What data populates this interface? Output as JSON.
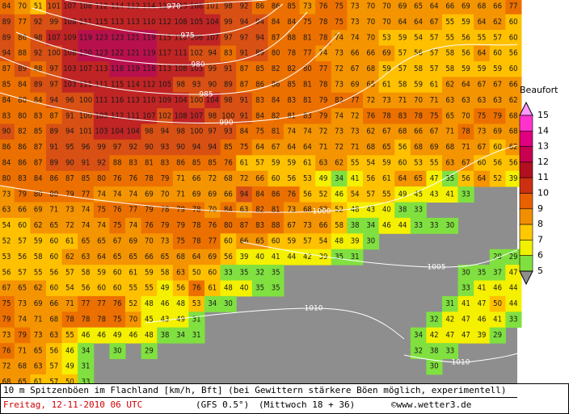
{
  "map": {
    "rows": [
      [
        84,
        70,
        51,
        101,
        107,
        108,
        112,
        114,
        112,
        114,
        113,
        113,
        108,
        101,
        98,
        92,
        86,
        86,
        85,
        73,
        76,
        75,
        73,
        70,
        70,
        69,
        65,
        64,
        66,
        69,
        68,
        66,
        77
      ],
      [
        89,
        77,
        92,
        99,
        108,
        111,
        115,
        113,
        113,
        110,
        112,
        108,
        105,
        104,
        99,
        94,
        94,
        84,
        84,
        75,
        78,
        75,
        73,
        70,
        70,
        64,
        64,
        67,
        55,
        59,
        64,
        62,
        60
      ],
      [
        89,
        86,
        98,
        107,
        109,
        119,
        123,
        123,
        121,
        119,
        115,
        110,
        106,
        107,
        97,
        97,
        94,
        87,
        88,
        81,
        78,
        74,
        74,
        70,
        53,
        59,
        54,
        57,
        55,
        56,
        55,
        57,
        60
      ],
      [
        94,
        88,
        92,
        100,
        108,
        120,
        123,
        122,
        121,
        119,
        117,
        111,
        102,
        94,
        83,
        91,
        89,
        80,
        78,
        77,
        74,
        73,
        66,
        66,
        69,
        57,
        56,
        57,
        58,
        56,
        64,
        60,
        56
      ],
      [
        87,
        89,
        88,
        97,
        103,
        107,
        113,
        118,
        119,
        118,
        113,
        108,
        103,
        99,
        91,
        87,
        85,
        82,
        82,
        80,
        77,
        72,
        67,
        68,
        59,
        57,
        58,
        57,
        58,
        59,
        59,
        59,
        60
      ],
      [
        85,
        84,
        89,
        97,
        103,
        111,
        111,
        115,
        114,
        112,
        105,
        98,
        93,
        90,
        89,
        87,
        86,
        86,
        85,
        81,
        78,
        73,
        69,
        65,
        61,
        58,
        59,
        61,
        62,
        64,
        67,
        67,
        66
      ],
      [
        84,
        80,
        84,
        94,
        96,
        100,
        111,
        116,
        113,
        110,
        109,
        104,
        100,
        104,
        98,
        91,
        83,
        84,
        83,
        81,
        79,
        82,
        77,
        72,
        73,
        71,
        70,
        71,
        63,
        63,
        63,
        63,
        62
      ],
      [
        83,
        80,
        83,
        87,
        91,
        100,
        103,
        112,
        111,
        107,
        102,
        108,
        107,
        98,
        100,
        91,
        84,
        82,
        81,
        83,
        79,
        74,
        72,
        76,
        78,
        83,
        78,
        75,
        65,
        70,
        75,
        79,
        68
      ],
      [
        90,
        82,
        85,
        89,
        94,
        101,
        103,
        104,
        104,
        98,
        94,
        98,
        100,
        97,
        93,
        84,
        75,
        81,
        74,
        74,
        72,
        73,
        73,
        62,
        67,
        68,
        66,
        67,
        71,
        78,
        73,
        69,
        68
      ],
      [
        86,
        86,
        87,
        91,
        95,
        96,
        99,
        97,
        92,
        90,
        93,
        90,
        94,
        94,
        85,
        75,
        64,
        67,
        64,
        64,
        71,
        72,
        71,
        68,
        65,
        56,
        68,
        69,
        68,
        71,
        67,
        60,
        62
      ],
      [
        84,
        86,
        87,
        89,
        90,
        91,
        92,
        88,
        83,
        81,
        83,
        86,
        85,
        85,
        76,
        61,
        57,
        59,
        59,
        61,
        63,
        62,
        55,
        54,
        59,
        60,
        53,
        55,
        63,
        67,
        60,
        56,
        56
      ],
      [
        80,
        83,
        84,
        86,
        87,
        85,
        80,
        76,
        76,
        78,
        79,
        71,
        66,
        72,
        68,
        72,
        66,
        60,
        56,
        53,
        49,
        34,
        41,
        56,
        61,
        64,
        65,
        47,
        35,
        56,
        64,
        52,
        39
      ],
      [
        73,
        79,
        80,
        80,
        79,
        77,
        74,
        74,
        74,
        69,
        70,
        71,
        69,
        69,
        66,
        94,
        84,
        86,
        76,
        56,
        52,
        46,
        54,
        57,
        55,
        49,
        45,
        43,
        41,
        33,
        null,
        null,
        null
      ],
      [
        63,
        66,
        69,
        71,
        73,
        74,
        75,
        76,
        77,
        79,
        78,
        79,
        78,
        70,
        84,
        63,
        82,
        81,
        73,
        68,
        62,
        52,
        48,
        43,
        40,
        38,
        33,
        null,
        null,
        null,
        null,
        null,
        null
      ],
      [
        54,
        60,
        62,
        65,
        72,
        74,
        74,
        75,
        74,
        76,
        79,
        79,
        78,
        76,
        80,
        87,
        83,
        88,
        67,
        73,
        66,
        58,
        38,
        34,
        46,
        44,
        33,
        33,
        30,
        null,
        null,
        null,
        null
      ],
      [
        52,
        57,
        59,
        60,
        61,
        65,
        65,
        67,
        69,
        70,
        73,
        75,
        78,
        77,
        60,
        66,
        65,
        60,
        59,
        57,
        54,
        48,
        39,
        30,
        null,
        null,
        null,
        null,
        null,
        null,
        null,
        null,
        null
      ],
      [
        53,
        56,
        58,
        60,
        62,
        63,
        64,
        65,
        65,
        66,
        65,
        68,
        64,
        69,
        56,
        39,
        40,
        41,
        44,
        42,
        39,
        35,
        31,
        null,
        null,
        null,
        null,
        null,
        null,
        null,
        null,
        29,
        29
      ],
      [
        56,
        57,
        55,
        56,
        57,
        58,
        59,
        60,
        61,
        59,
        58,
        63,
        50,
        60,
        33,
        35,
        32,
        35,
        null,
        null,
        null,
        null,
        null,
        null,
        null,
        null,
        null,
        null,
        null,
        30,
        35,
        37,
        47
      ],
      [
        67,
        65,
        62,
        60,
        54,
        56,
        60,
        60,
        55,
        55,
        49,
        56,
        76,
        61,
        48,
        40,
        35,
        35,
        null,
        null,
        null,
        null,
        null,
        null,
        null,
        null,
        null,
        null,
        null,
        33,
        41,
        46,
        44
      ],
      [
        75,
        73,
        69,
        66,
        71,
        77,
        77,
        76,
        52,
        48,
        46,
        48,
        53,
        34,
        30,
        null,
        null,
        null,
        null,
        null,
        null,
        null,
        null,
        null,
        null,
        null,
        null,
        null,
        31,
        41,
        47,
        50,
        44
      ],
      [
        79,
        74,
        71,
        68,
        78,
        78,
        78,
        75,
        70,
        45,
        43,
        49,
        31,
        null,
        null,
        null,
        null,
        null,
        null,
        null,
        null,
        null,
        null,
        null,
        null,
        null,
        null,
        32,
        42,
        47,
        46,
        41,
        33
      ],
      [
        73,
        79,
        73,
        63,
        55,
        46,
        46,
        49,
        46,
        48,
        38,
        34,
        31,
        null,
        null,
        null,
        null,
        null,
        null,
        null,
        null,
        null,
        null,
        null,
        null,
        null,
        34,
        42,
        47,
        47,
        39,
        29,
        null
      ],
      [
        76,
        71,
        65,
        56,
        46,
        34,
        null,
        30,
        null,
        29,
        null,
        null,
        null,
        null,
        null,
        null,
        null,
        null,
        null,
        null,
        null,
        null,
        null,
        null,
        null,
        null,
        32,
        38,
        33,
        null,
        null,
        null,
        null
      ],
      [
        72,
        68,
        63,
        57,
        49,
        31,
        null,
        null,
        null,
        null,
        null,
        null,
        null,
        null,
        null,
        null,
        null,
        null,
        null,
        null,
        null,
        null,
        null,
        null,
        null,
        null,
        null,
        30,
        null,
        null,
        null,
        null,
        null
      ],
      [
        68,
        65,
        61,
        57,
        50,
        33,
        null,
        null,
        null,
        null,
        null,
        null,
        null,
        null,
        null,
        null,
        null,
        null,
        null,
        null,
        null,
        null,
        null,
        null,
        null,
        null,
        null,
        null,
        null,
        null,
        null,
        null,
        null
      ]
    ],
    "isobar_labels": [
      "970",
      "975",
      "980",
      "985",
      "990",
      "1000",
      "1005",
      "1010",
      "1010"
    ]
  },
  "legend": {
    "title": "Beaufort",
    "labels": [
      "15",
      "14",
      "13",
      "12",
      "11",
      "10",
      "9",
      "8",
      "7",
      "6",
      "5"
    ]
  },
  "footer": {
    "line1": "10 m Spitzenböen im Flachland [km/h, Bft] (bei Gewittern stärkere Böen möglich, experimentell)",
    "date": "Freitag, 12-11-2010  06 UTC",
    "model": "(GFS 0.5°)",
    "run": "(Mittwoch 18 + 36)",
    "credit": "©www.wetter3.de"
  }
}
